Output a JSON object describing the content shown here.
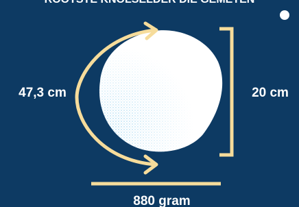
{
  "title": "ROOTSTE KNOLSELDER DIE GEMETEN",
  "labels": {
    "circumference": "47,3 cm",
    "height": "20 cm",
    "weight": "880 gram"
  }
}
